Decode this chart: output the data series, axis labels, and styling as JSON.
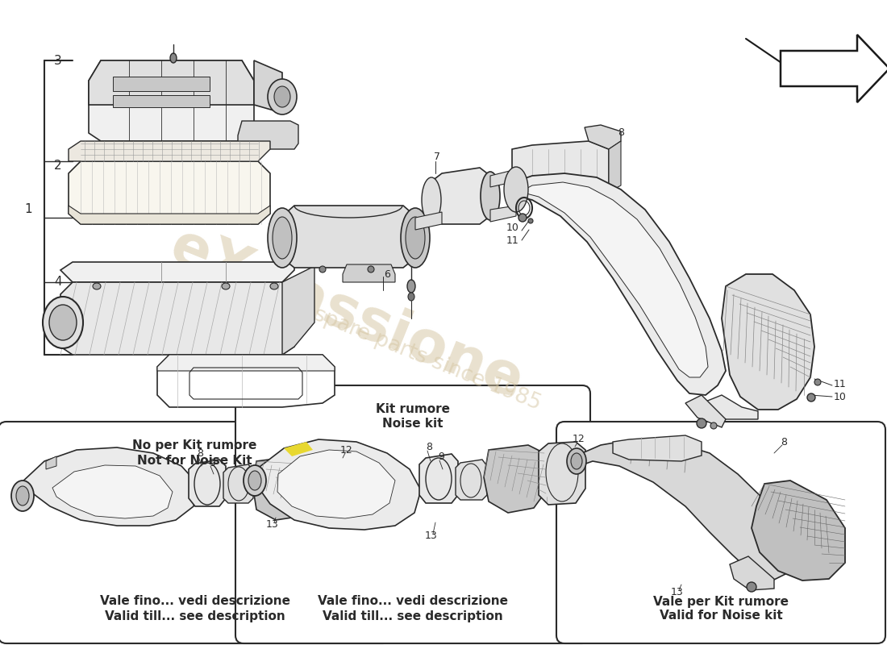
{
  "bg_color": "#ffffff",
  "line_color": "#2a2a2a",
  "wm1": "eXpassione",
  "wm2": "spare parts since 1985",
  "wm_color": "#d4c4a0",
  "box1_t1": "No per Kit rumore",
  "box1_t2": "Not for Noise Kit",
  "box2_t1": "Kit rumore",
  "box2_t2": "Noise kit",
  "box3_t1": "Vale per Kit rumore",
  "box3_t2": "Valid for Noise kit",
  "foot1_1": "Vale fino... vedi descrizione",
  "foot1_2": "Valid till... see description",
  "foot2_1": "Vale per Kit rumore",
  "foot2_2": "Valid for Noise kit"
}
